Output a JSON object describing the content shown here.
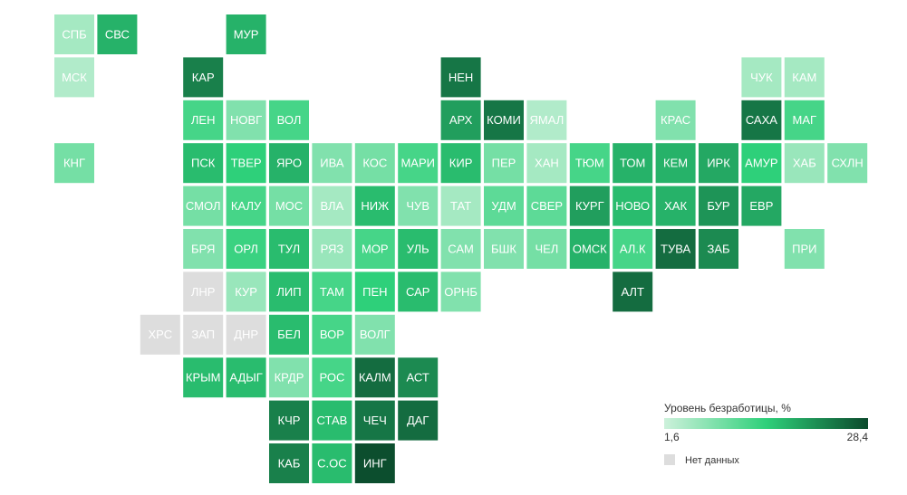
{
  "chart_data": {
    "type": "tilemap",
    "tiles": [
      {
        "label": "СПБ",
        "value": 5
      },
      {
        "label": "СВС",
        "value": 18
      },
      {
        "label": "МУР",
        "value": 18
      },
      {
        "label": "МСК",
        "value": 4
      },
      {
        "label": "КАР",
        "value": 23
      },
      {
        "label": "НЕН",
        "value": 24
      },
      {
        "label": "ЧУК",
        "value": 5
      },
      {
        "label": "КАМ",
        "value": 5
      },
      {
        "label": "ЛЕН",
        "value": 13
      },
      {
        "label": "НОВГ",
        "value": 8
      },
      {
        "label": "ВОЛ",
        "value": 13
      },
      {
        "label": "АРХ",
        "value": 20
      },
      {
        "label": "КОМИ",
        "value": 24
      },
      {
        "label": "ЯМАЛ",
        "value": 4
      },
      {
        "label": "КРАС",
        "value": 8
      },
      {
        "label": "САХА",
        "value": 24
      },
      {
        "label": "МАГ",
        "value": 13
      },
      {
        "label": "КНГ",
        "value": 9
      },
      {
        "label": "ПСК",
        "value": 17
      },
      {
        "label": "ТВЕР",
        "value": 15
      },
      {
        "label": "ЯРО",
        "value": 18
      },
      {
        "label": "ИВА",
        "value": 8
      },
      {
        "label": "КОС",
        "value": 9
      },
      {
        "label": "МАРИ",
        "value": 13
      },
      {
        "label": "КИР",
        "value": 17
      },
      {
        "label": "ПЕР",
        "value": 9
      },
      {
        "label": "ХАН",
        "value": 5
      },
      {
        "label": "ТЮМ",
        "value": 13
      },
      {
        "label": "ТОМ",
        "value": 18
      },
      {
        "label": "КЕМ",
        "value": 18
      },
      {
        "label": "ИРК",
        "value": 19
      },
      {
        "label": "АМУР",
        "value": 15
      },
      {
        "label": "ХАБ",
        "value": 6
      },
      {
        "label": "СХЛН",
        "value": 8
      },
      {
        "label": "СМОЛ",
        "value": 9
      },
      {
        "label": "КАЛУ",
        "value": 13
      },
      {
        "label": "МОС",
        "value": 9
      },
      {
        "label": "ВЛА",
        "value": 5
      },
      {
        "label": "НИЖ",
        "value": 17
      },
      {
        "label": "ЧУВ",
        "value": 8
      },
      {
        "label": "ТАТ",
        "value": 5
      },
      {
        "label": "УДМ",
        "value": 11
      },
      {
        "label": "СВЕР",
        "value": 11
      },
      {
        "label": "КУРГ",
        "value": 20
      },
      {
        "label": "НОВО",
        "value": 17
      },
      {
        "label": "ХАК",
        "value": 18
      },
      {
        "label": "БУР",
        "value": 21
      },
      {
        "label": "ЕВР",
        "value": 19
      },
      {
        "label": "БРЯ",
        "value": 8
      },
      {
        "label": "ОРЛ",
        "value": 14
      },
      {
        "label": "ТУЛ",
        "value": 17
      },
      {
        "label": "РЯЗ",
        "value": 6
      },
      {
        "label": "МОР",
        "value": 13
      },
      {
        "label": "УЛЬ",
        "value": 17
      },
      {
        "label": "САМ",
        "value": 8
      },
      {
        "label": "БШК",
        "value": 8
      },
      {
        "label": "ЧЕЛ",
        "value": 9
      },
      {
        "label": "ОМСК",
        "value": 18
      },
      {
        "label": "АЛ.К",
        "value": 13
      },
      {
        "label": "ТУВА",
        "value": 25
      },
      {
        "label": "ЗАБ",
        "value": 22
      },
      {
        "label": "ПРИ",
        "value": 8
      },
      {
        "label": "ЛНР",
        "value": null
      },
      {
        "label": "КУР",
        "value": 6
      },
      {
        "label": "ЛИП",
        "value": 17
      },
      {
        "label": "ТАМ",
        "value": 13
      },
      {
        "label": "ПЕН",
        "value": 15
      },
      {
        "label": "САР",
        "value": 17
      },
      {
        "label": "ОРНБ",
        "value": 8
      },
      {
        "label": "АЛТ",
        "value": 25
      },
      {
        "label": "ХРС",
        "value": null
      },
      {
        "label": "ЗАП",
        "value": null
      },
      {
        "label": "ДНР",
        "value": null
      },
      {
        "label": "БЕЛ",
        "value": 17
      },
      {
        "label": "ВОР",
        "value": 13
      },
      {
        "label": "ВОЛГ",
        "value": 8
      },
      {
        "label": "КРЫМ",
        "value": 17
      },
      {
        "label": "АДЫГ",
        "value": 17
      },
      {
        "label": "КРДР",
        "value": 8
      },
      {
        "label": "РОС",
        "value": 13
      },
      {
        "label": "КАЛМ",
        "value": 25
      },
      {
        "label": "АСТ",
        "value": 22
      },
      {
        "label": "КЧР",
        "value": 23
      },
      {
        "label": "СТАВ",
        "value": 17
      },
      {
        "label": "ЧЕЧ",
        "value": 24
      },
      {
        "label": "ДАГ",
        "value": 25
      },
      {
        "label": "КАБ",
        "value": 23
      },
      {
        "label": "С.ОС",
        "value": 17
      },
      {
        "label": "ИНГ",
        "value": 28
      }
    ],
    "legend": {
      "title": "Уровень безработицы, %",
      "min": {
        "value": 1.6,
        "label": "1,6"
      },
      "max": {
        "value": 28.4,
        "label": "28,4"
      },
      "colors": [
        "#cdf1db",
        "#2ed07a",
        "#0b4a2c"
      ],
      "no_data_label": "Нет данных",
      "no_data_color": "#dddddd"
    }
  }
}
